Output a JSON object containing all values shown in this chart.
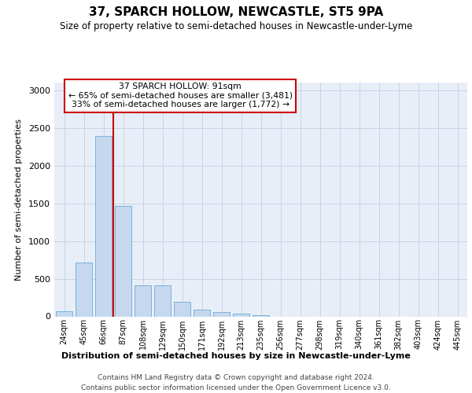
{
  "title": "37, SPARCH HOLLOW, NEWCASTLE, ST5 9PA",
  "subtitle": "Size of property relative to semi-detached houses in Newcastle-under-Lyme",
  "xlabel": "Distribution of semi-detached houses by size in Newcastle-under-Lyme",
  "ylabel": "Number of semi-detached properties",
  "footer_line1": "Contains HM Land Registry data © Crown copyright and database right 2024.",
  "footer_line2": "Contains public sector information licensed under the Open Government Licence v3.0.",
  "categories": [
    "24sqm",
    "45sqm",
    "66sqm",
    "87sqm",
    "108sqm",
    "129sqm",
    "150sqm",
    "171sqm",
    "192sqm",
    "213sqm",
    "235sqm",
    "256sqm",
    "277sqm",
    "298sqm",
    "319sqm",
    "340sqm",
    "361sqm",
    "382sqm",
    "403sqm",
    "424sqm",
    "445sqm"
  ],
  "values": [
    65,
    710,
    2390,
    1460,
    410,
    410,
    195,
    90,
    55,
    35,
    20,
    0,
    0,
    0,
    0,
    0,
    0,
    0,
    0,
    0,
    0
  ],
  "bar_color": "#c5d8ee",
  "bar_edge_color": "#6aaad4",
  "red_line_bin_index": 2,
  "annotation_title": "37 SPARCH HOLLOW: 91sqm",
  "annotation_line1": "← 65% of semi-detached houses are smaller (3,481)",
  "annotation_line2": "33% of semi-detached houses are larger (1,772) →",
  "red_line_color": "#cc0000",
  "annotation_box_edge_color": "#cc0000",
  "grid_color": "#c8d4e4",
  "background_color": "#e8eef8",
  "ylim": [
    0,
    3100
  ],
  "yticks": [
    0,
    500,
    1000,
    1500,
    2000,
    2500,
    3000
  ]
}
